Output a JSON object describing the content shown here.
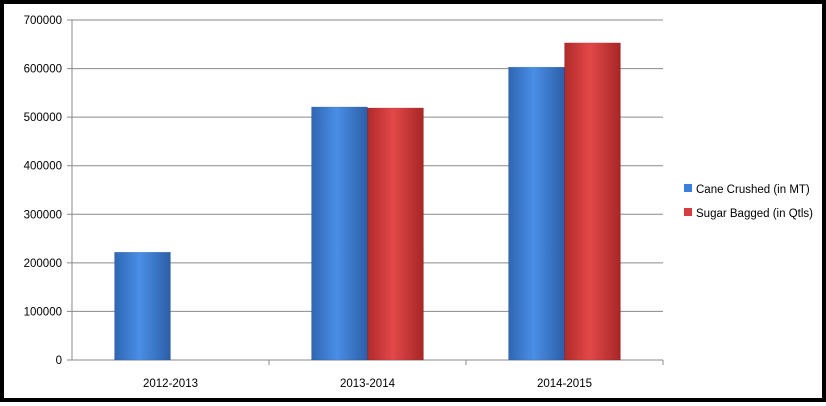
{
  "chart_data": {
    "type": "bar",
    "title": "",
    "xlabel": "",
    "ylabel": "",
    "categories": [
      "2012-2013",
      "2013-2014",
      "2014-2015"
    ],
    "series": [
      {
        "name": "Cane Crushed (in MT)",
        "values": [
          222000,
          521000,
          603000
        ],
        "color": "#3c7fd8"
      },
      {
        "name": "Sugar Bagged (in Qtls)",
        "values": [
          null,
          519000,
          653000
        ],
        "color": "#d63c3c"
      }
    ],
    "ylim": [
      0,
      700000
    ],
    "yticks": [
      "0",
      "100000",
      "200000",
      "300000",
      "400000",
      "500000",
      "600000",
      "700000"
    ],
    "ytick_values": [
      0,
      100000,
      200000,
      300000,
      400000,
      500000,
      600000,
      700000
    ],
    "grid": true,
    "legend_position": "right"
  }
}
